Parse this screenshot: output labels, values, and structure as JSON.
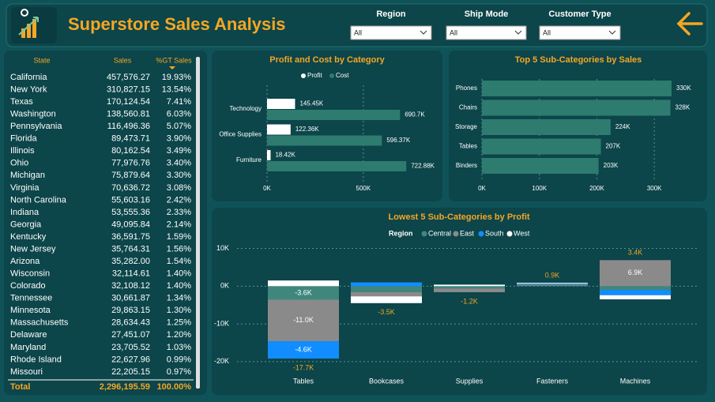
{
  "header": {
    "title": "Superstore Sales Analysis"
  },
  "filters": [
    {
      "label": "Region",
      "value": "All"
    },
    {
      "label": "Ship Mode",
      "value": "All"
    },
    {
      "label": "Customer Type",
      "value": "All"
    }
  ],
  "table": {
    "columns": [
      "State",
      "Sales",
      "%GT Sales"
    ],
    "rows": [
      [
        "California",
        "457,576.27",
        "19.93%"
      ],
      [
        "New York",
        "310,827.15",
        "13.54%"
      ],
      [
        "Texas",
        "170,124.54",
        "7.41%"
      ],
      [
        "Washington",
        "138,560.81",
        "6.03%"
      ],
      [
        "Pennsylvania",
        "116,496.36",
        "5.07%"
      ],
      [
        "Florida",
        "89,473.71",
        "3.90%"
      ],
      [
        "Illinois",
        "80,162.54",
        "3.49%"
      ],
      [
        "Ohio",
        "77,976.76",
        "3.40%"
      ],
      [
        "Michigan",
        "75,879.64",
        "3.30%"
      ],
      [
        "Virginia",
        "70,636.72",
        "3.08%"
      ],
      [
        "North Carolina",
        "55,603.16",
        "2.42%"
      ],
      [
        "Indiana",
        "53,555.36",
        "2.33%"
      ],
      [
        "Georgia",
        "49,095.84",
        "2.14%"
      ],
      [
        "Kentucky",
        "36,591.75",
        "1.59%"
      ],
      [
        "New Jersey",
        "35,764.31",
        "1.56%"
      ],
      [
        "Arizona",
        "35,282.00",
        "1.54%"
      ],
      [
        "Wisconsin",
        "32,114.61",
        "1.40%"
      ],
      [
        "Colorado",
        "32,108.12",
        "1.40%"
      ],
      [
        "Tennessee",
        "30,661.87",
        "1.34%"
      ],
      [
        "Minnesota",
        "29,863.15",
        "1.30%"
      ],
      [
        "Massachusetts",
        "28,634.43",
        "1.25%"
      ],
      [
        "Delaware",
        "27,451.07",
        "1.20%"
      ],
      [
        "Maryland",
        "23,705.52",
        "1.03%"
      ],
      [
        "Rhode Island",
        "22,627.96",
        "0.99%"
      ],
      [
        "Missouri",
        "22,205.15",
        "0.97%"
      ]
    ],
    "total": [
      "Total",
      "2,296,195.59",
      "100.00%"
    ]
  },
  "chart_data": [
    {
      "type": "bar",
      "horizontal": true,
      "title": "Profit and Cost by Category",
      "categories": [
        "Technology",
        "Office Supplies",
        "Furniture"
      ],
      "series": [
        {
          "name": "Profit",
          "color": "#ffffff",
          "values": [
            145450,
            122360,
            18420
          ],
          "value_labels": [
            "145.45K",
            "122.36K",
            "18.42K"
          ]
        },
        {
          "name": "Cost",
          "color": "#2e7b70",
          "values": [
            690700,
            596370,
            722880
          ],
          "value_labels": [
            "690.7K",
            "596.37K",
            "722.88K"
          ]
        }
      ],
      "xlim": [
        0,
        800000
      ],
      "xticks": [
        {
          "value": 0,
          "label": "0K"
        },
        {
          "value": 500000,
          "label": "500K"
        }
      ],
      "grid": true,
      "legend": "top"
    },
    {
      "type": "bar",
      "horizontal": true,
      "title": "Top 5 Sub-Categories by Sales",
      "categories": [
        "Phones",
        "Chairs",
        "Storage",
        "Tables",
        "Binders"
      ],
      "values": [
        330000,
        328000,
        224000,
        207000,
        203000
      ],
      "value_labels": [
        "330K",
        "328K",
        "224K",
        "207K",
        "203K"
      ],
      "color": "#2e7b70",
      "xlim": [
        0,
        330000
      ],
      "xticks": [
        {
          "value": 0,
          "label": "0K"
        },
        {
          "value": 100000,
          "label": "100K"
        },
        {
          "value": 200000,
          "label": "200K"
        },
        {
          "value": 300000,
          "label": "300K"
        }
      ],
      "grid": true
    },
    {
      "type": "stacked_bar",
      "title": "Lowest 5 Sub-Categories by Profit",
      "legend_title": "Region",
      "categories": [
        "Tables",
        "Bookcases",
        "Supplies",
        "Fasteners",
        "Machines"
      ],
      "series": [
        {
          "name": "Central",
          "color": "#3f877d",
          "values": [
            -3600,
            -1600,
            -600,
            200,
            -1000
          ],
          "value_labels": [
            "-3.6K",
            null,
            null,
            null,
            null
          ]
        },
        {
          "name": "East",
          "color": "#8a8a8a",
          "values": [
            -11000,
            -1100,
            -1000,
            300,
            6900
          ],
          "value_labels": [
            "-11.0K",
            null,
            null,
            null,
            "6.9K"
          ]
        },
        {
          "name": "South",
          "color": "#118dff",
          "values": [
            -4600,
            1000,
            0,
            200,
            -1400
          ],
          "value_labels": [
            "-4.6K",
            null,
            null,
            null,
            null
          ]
        },
        {
          "name": "West",
          "color": "#ffffff",
          "values": [
            1500,
            -1800,
            400,
            200,
            -1100
          ],
          "value_labels": [
            null,
            null,
            null,
            null,
            null
          ]
        }
      ],
      "totals": [
        -17700,
        -3500,
        -1200,
        900,
        3400
      ],
      "total_labels": [
        "-17.7K",
        "-3.5K",
        "-1.2K",
        "0.9K",
        "3.4K"
      ],
      "ylim": [
        -21500,
        12000
      ],
      "yticks": [
        {
          "value": 10000,
          "label": "10K"
        },
        {
          "value": 0,
          "label": "0K"
        },
        {
          "value": -10000,
          "label": "-10K"
        },
        {
          "value": -20000,
          "label": "-20K"
        }
      ],
      "grid": true,
      "legend": "top"
    }
  ]
}
